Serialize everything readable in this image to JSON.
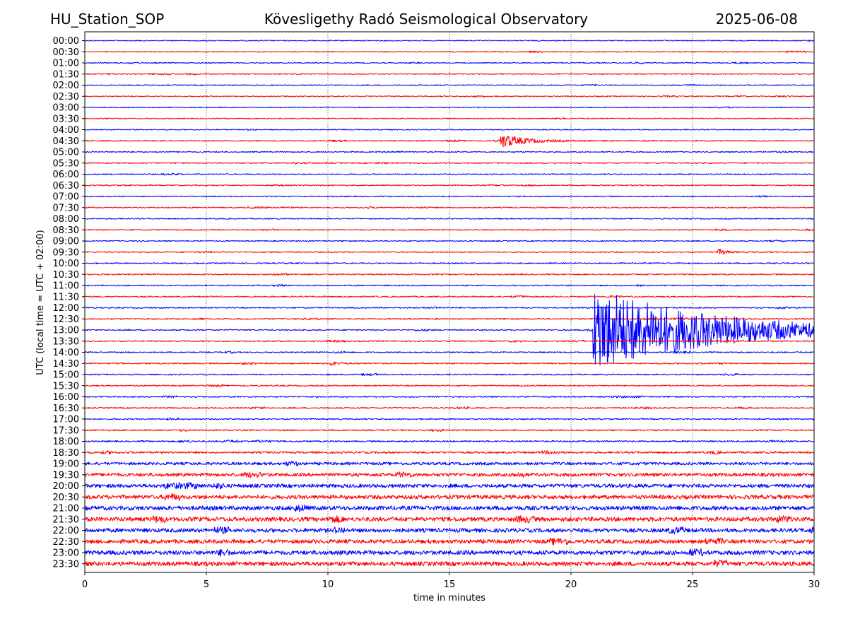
{
  "header": {
    "station": "HU_Station_SOP",
    "title": "Kövesligethy Radó Seismological Observatory",
    "date": "2025-06-08"
  },
  "colors": {
    "even_rows": "#0000ff",
    "odd_rows": "#ff0000",
    "grid": "#000000"
  },
  "chart_data": {
    "type": "line",
    "title": "Kövesligethy Radó Seismological Observatory",
    "xlabel": "time in minutes",
    "ylabel": "UTC (local time = UTC + 02:00)",
    "xlim": [
      0,
      30
    ],
    "xticks": [
      0,
      5,
      10,
      15,
      20,
      25,
      30
    ],
    "grid": "vertical dotted lines at x ticks",
    "rows": [
      "00:00",
      "00:30",
      "01:00",
      "01:30",
      "02:00",
      "02:30",
      "03:00",
      "03:30",
      "04:00",
      "04:30",
      "05:00",
      "05:30",
      "06:00",
      "06:30",
      "07:00",
      "07:30",
      "08:00",
      "08:30",
      "09:00",
      "09:30",
      "10:00",
      "10:30",
      "11:00",
      "11:30",
      "12:00",
      "12:30",
      "13:00",
      "13:30",
      "14:00",
      "14:30",
      "15:00",
      "15:30",
      "16:00",
      "16:30",
      "17:00",
      "17:30",
      "18:00",
      "18:30",
      "19:00",
      "19:30",
      "20:00",
      "20:30",
      "21:00",
      "21:30",
      "22:00",
      "22:30",
      "23:00",
      "23:30"
    ],
    "row_noise_level": [
      0.7,
      0.7,
      0.7,
      0.7,
      0.7,
      0.7,
      0.7,
      0.7,
      0.7,
      0.8,
      0.8,
      0.8,
      0.8,
      0.8,
      0.8,
      0.8,
      0.8,
      0.8,
      0.8,
      0.8,
      0.9,
      0.9,
      0.9,
      0.9,
      0.9,
      0.9,
      0.9,
      0.9,
      0.9,
      0.9,
      0.9,
      0.9,
      0.9,
      0.9,
      0.9,
      1.0,
      1.1,
      1.4,
      2.0,
      2.4,
      2.6,
      2.8,
      3.0,
      3.0,
      2.8,
      2.8,
      3.0,
      3.0
    ],
    "events": [
      {
        "row": "04:30",
        "start_min": 17.1,
        "peak": 9,
        "decay_min": 0.9
      },
      {
        "row": "09:30",
        "start_min": 26.0,
        "peak": 5,
        "decay_min": 0.3
      },
      {
        "row": "13:00",
        "start_min": 20.9,
        "peak": 58,
        "decay_min": 4.5
      },
      {
        "row": "14:30",
        "start_min": 10.1,
        "peak": 3,
        "decay_min": 0.3
      }
    ]
  }
}
